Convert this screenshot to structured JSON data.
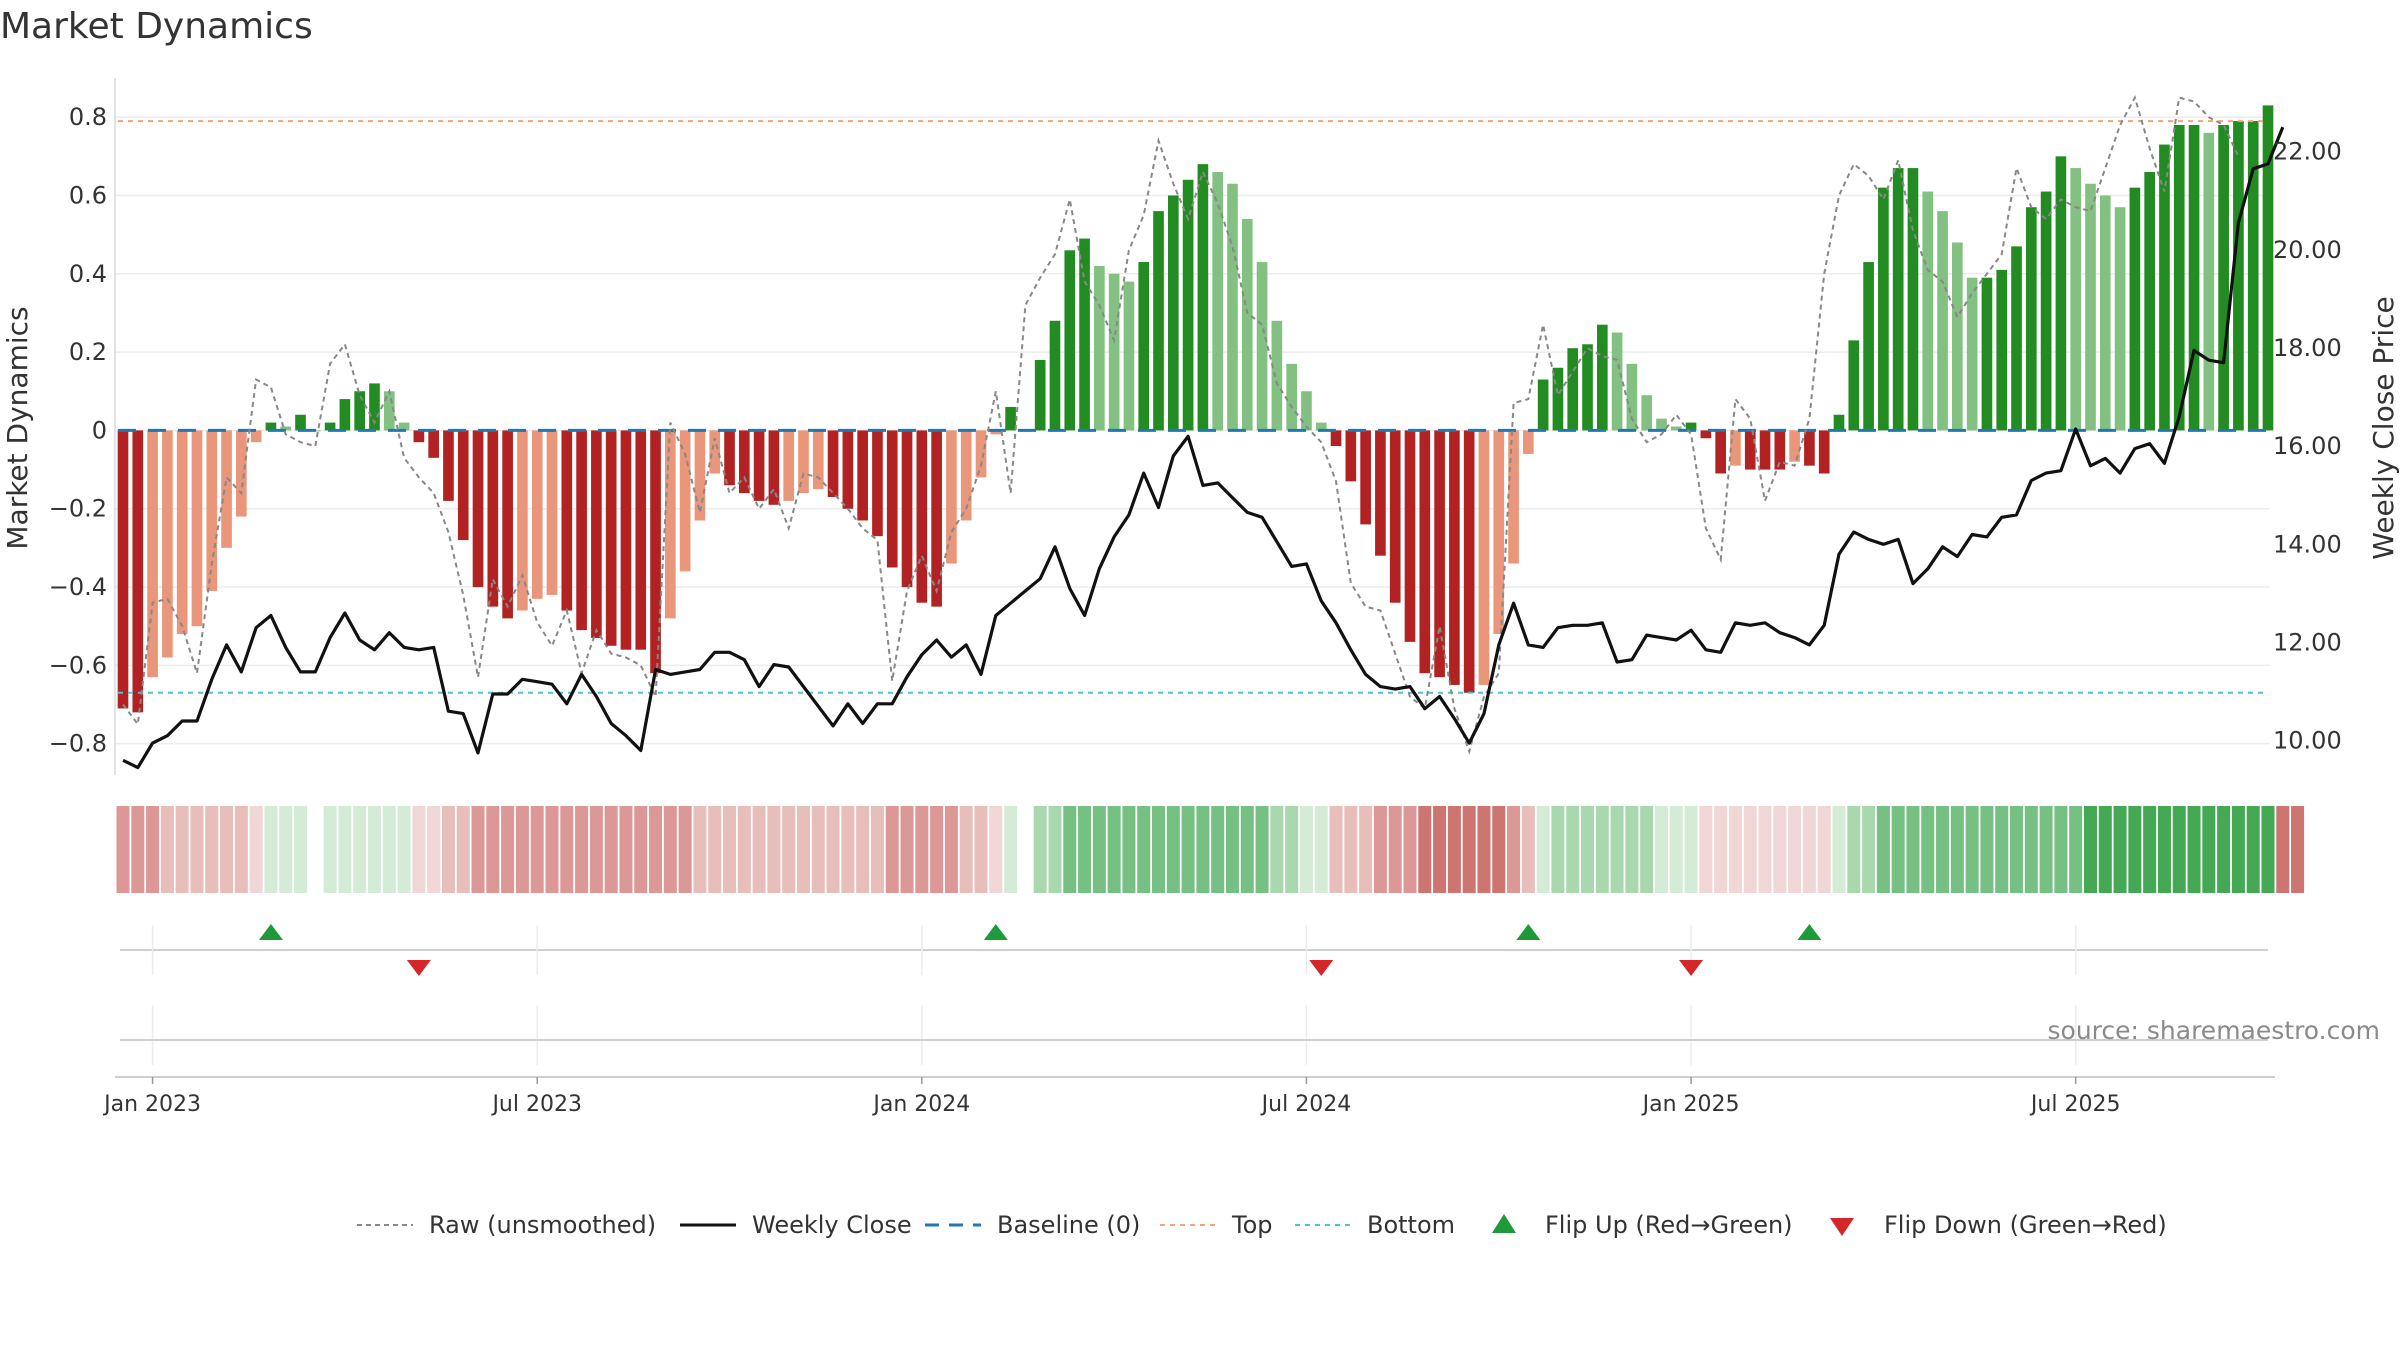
{
  "chart_data": {
    "type": "bar",
    "title": "Market Dynamics",
    "ylabel_left": "Market Dynamics",
    "ylabel_right": "Weekly Close Price",
    "ylim_left": [
      -0.88,
      0.9
    ],
    "ylim_right": [
      9.3,
      23.5
    ],
    "yticks_left": [
      {
        "v": 0.8,
        "label": "0.8"
      },
      {
        "v": 0.6,
        "label": "0.6"
      },
      {
        "v": 0.4,
        "label": "0.4"
      },
      {
        "v": 0.2,
        "label": "0.2"
      },
      {
        "v": 0,
        "label": "0"
      },
      {
        "v": -0.2,
        "label": "−0.2"
      },
      {
        "v": -0.4,
        "label": "−0.4"
      },
      {
        "v": -0.6,
        "label": "−0.6"
      },
      {
        "v": -0.8,
        "label": "−0.8"
      }
    ],
    "yticks_right": [
      {
        "v": 22,
        "label": "22.00"
      },
      {
        "v": 20,
        "label": "20.00"
      },
      {
        "v": 18,
        "label": "18.00"
      },
      {
        "v": 16,
        "label": "16.00"
      },
      {
        "v": 14,
        "label": "14.00"
      },
      {
        "v": 12,
        "label": "12.00"
      },
      {
        "v": 10,
        "label": "10.00"
      }
    ],
    "xtick_labels": [
      {
        "week": 2,
        "label": "Jan 2023"
      },
      {
        "week": 28,
        "label": "Jul 2023"
      },
      {
        "week": 54,
        "label": "Jan 2024"
      },
      {
        "week": 80,
        "label": "Jul 2024"
      },
      {
        "week": 106,
        "label": "Jan 2025"
      },
      {
        "week": 132,
        "label": "Jul 2025"
      }
    ],
    "top_level": 0.79,
    "bottom_level": -0.67,
    "baseline": 0,
    "momentum": [
      -0.71,
      -0.72,
      -0.63,
      -0.58,
      -0.52,
      -0.5,
      -0.41,
      -0.3,
      -0.22,
      -0.03,
      0.02,
      0.01,
      0.04,
      0,
      0.02,
      0.08,
      0.1,
      0.12,
      0.1,
      0.02,
      -0.03,
      -0.07,
      -0.18,
      -0.28,
      -0.4,
      -0.45,
      -0.48,
      -0.46,
      -0.43,
      -0.42,
      -0.46,
      -0.51,
      -0.53,
      -0.55,
      -0.56,
      -0.56,
      -0.62,
      -0.48,
      -0.36,
      -0.23,
      -0.11,
      -0.14,
      -0.16,
      -0.18,
      -0.19,
      -0.18,
      -0.16,
      -0.15,
      -0.17,
      -0.2,
      -0.23,
      -0.27,
      -0.35,
      -0.4,
      -0.44,
      -0.45,
      -0.34,
      -0.23,
      -0.12,
      -0.01,
      0.06,
      0,
      0.18,
      0.28,
      0.46,
      0.49,
      0.42,
      0.4,
      0.38,
      0.43,
      0.56,
      0.6,
      0.64,
      0.68,
      0.66,
      0.63,
      0.54,
      0.43,
      0.28,
      0.17,
      0.1,
      0.02,
      -0.04,
      -0.13,
      -0.24,
      -0.32,
      -0.44,
      -0.54,
      -0.62,
      -0.63,
      -0.65,
      -0.67,
      -0.65,
      -0.52,
      -0.34,
      -0.06,
      0.13,
      0.16,
      0.21,
      0.22,
      0.27,
      0.25,
      0.17,
      0.09,
      0.03,
      0.01,
      0.02,
      -0.02,
      -0.11,
      -0.09,
      -0.1,
      -0.1,
      -0.1,
      -0.08,
      -0.09,
      -0.11,
      0.04,
      0.23,
      0.43,
      0.62,
      0.67,
      0.67,
      0.61,
      0.56,
      0.48,
      0.39,
      0.39,
      0.41,
      0.47,
      0.57,
      0.61,
      0.7,
      0.67,
      0.63,
      0.6,
      0.57,
      0.62,
      0.66,
      0.73,
      0.78,
      0.78,
      0.76,
      0.78,
      0.79,
      0.79,
      0.83
    ],
    "raw": [
      -0.7,
      -0.75,
      -0.44,
      -0.43,
      -0.5,
      -0.62,
      -0.34,
      -0.12,
      -0.16,
      0.13,
      0.11,
      -0.01,
      -0.03,
      -0.04,
      0.17,
      0.22,
      0.09,
      0.02,
      0.1,
      -0.07,
      -0.12,
      -0.16,
      -0.26,
      -0.42,
      -0.63,
      -0.38,
      -0.45,
      -0.37,
      -0.49,
      -0.55,
      -0.46,
      -0.62,
      -0.51,
      -0.57,
      -0.58,
      -0.6,
      -0.68,
      0.02,
      -0.06,
      -0.21,
      -0.02,
      -0.16,
      -0.12,
      -0.2,
      -0.15,
      -0.25,
      -0.11,
      -0.12,
      -0.16,
      -0.2,
      -0.25,
      -0.28,
      -0.64,
      -0.41,
      -0.32,
      -0.41,
      -0.26,
      -0.2,
      -0.09,
      0.1,
      -0.16,
      0.32,
      0.39,
      0.45,
      0.59,
      0.38,
      0.32,
      0.23,
      0.46,
      0.55,
      0.74,
      0.63,
      0.54,
      0.66,
      0.58,
      0.47,
      0.3,
      0.27,
      0.12,
      0.06,
      0.01,
      -0.03,
      -0.13,
      -0.39,
      -0.45,
      -0.46,
      -0.57,
      -0.68,
      -0.71,
      -0.5,
      -0.71,
      -0.82,
      -0.68,
      -0.62,
      0.07,
      0.08,
      0.27,
      0.09,
      0.15,
      0.21,
      0.19,
      0.18,
      0.03,
      -0.03,
      -0.01,
      0.04,
      -0.01,
      -0.25,
      -0.33,
      0.08,
      0.03,
      -0.18,
      -0.08,
      -0.09,
      0.03,
      0.4,
      0.6,
      0.68,
      0.65,
      0.59,
      0.69,
      0.51,
      0.41,
      0.38,
      0.29,
      0.35,
      0.4,
      0.45,
      0.67,
      0.57,
      0.54,
      0.59,
      0.57,
      0.56,
      0.67,
      0.78,
      0.85,
      0.72,
      0.61,
      0.85,
      0.84,
      0.8,
      0.78,
      0.7
    ],
    "price": [
      9.6,
      9.45,
      9.95,
      10.1,
      10.4,
      10.4,
      11.25,
      11.95,
      11.4,
      12.3,
      12.55,
      11.9,
      11.4,
      11.4,
      12.1,
      12.6,
      12.05,
      11.85,
      12.2,
      11.9,
      11.85,
      11.9,
      10.6,
      10.55,
      9.75,
      10.95,
      10.95,
      11.25,
      11.2,
      11.15,
      10.75,
      11.35,
      10.9,
      10.35,
      10.1,
      9.8,
      11.45,
      11.35,
      11.4,
      11.45,
      11.8,
      11.8,
      11.65,
      11.1,
      11.55,
      11.5,
      11.1,
      10.7,
      10.3,
      10.75,
      10.35,
      10.75,
      10.75,
      11.3,
      11.75,
      12.05,
      11.7,
      11.95,
      11.35,
      12.55,
      12.8,
      13.05,
      13.3,
      13.95,
      13.1,
      12.55,
      13.5,
      14.15,
      14.6,
      15.45,
      14.75,
      15.8,
      16.2,
      15.2,
      15.25,
      14.95,
      14.65,
      14.55,
      14.05,
      13.55,
      13.6,
      12.85,
      12.4,
      11.85,
      11.35,
      11.1,
      11.05,
      11.1,
      10.65,
      10.9,
      10.45,
      9.95,
      10.55,
      11.95,
      12.8,
      11.95,
      11.9,
      12.3,
      12.35,
      12.35,
      12.4,
      11.6,
      11.65,
      12.15,
      12.1,
      12.05,
      12.25,
      11.85,
      11.8,
      12.4,
      12.35,
      12.4,
      12.2,
      12.1,
      11.95,
      12.35,
      13.8,
      14.25,
      14.1,
      14.0,
      14.1,
      13.2,
      13.5,
      13.95,
      13.75,
      14.2,
      14.15,
      14.55,
      14.6,
      15.3,
      15.45,
      15.5,
      16.35,
      15.6,
      15.75,
      15.45,
      15.95,
      16.05,
      15.65,
      16.6,
      17.95,
      17.75,
      17.7,
      20.55,
      21.65,
      21.75,
      22.5
    ],
    "regime_strength": [
      2,
      2,
      2,
      1,
      1,
      1,
      1,
      1,
      1,
      0,
      0,
      0,
      0,
      0,
      0,
      0,
      0,
      0,
      0,
      0,
      0,
      0,
      1,
      1,
      2,
      2,
      2,
      2,
      2,
      2,
      2,
      2,
      2,
      2,
      2,
      2,
      2,
      2,
      2,
      1,
      1,
      1,
      1,
      1,
      1,
      1,
      1,
      1,
      1,
      1,
      1,
      1,
      2,
      2,
      2,
      2,
      2,
      1,
      1,
      0,
      0,
      0,
      1,
      1,
      2,
      2,
      2,
      2,
      2,
      2,
      2,
      2,
      2,
      2,
      2,
      2,
      2,
      2,
      1,
      1,
      0,
      0,
      1,
      1,
      1,
      2,
      2,
      2,
      3,
      3,
      3,
      3,
      3,
      3,
      2,
      1,
      0,
      1,
      1,
      1,
      1,
      1,
      1,
      1,
      0,
      0,
      0,
      0,
      0,
      0,
      0,
      0,
      0,
      0,
      0,
      0,
      0,
      1,
      1,
      2,
      2,
      2,
      2,
      2,
      2,
      2,
      2,
      2,
      2,
      2,
      2,
      2,
      2,
      3,
      3,
      3,
      3,
      3,
      3,
      3,
      3,
      3,
      3,
      3,
      3,
      3,
      3,
      3
    ],
    "flips_up": [
      10,
      59,
      95,
      114
    ],
    "flips_down": [
      20,
      81,
      106
    ],
    "legend": [
      {
        "key": "raw",
        "label": "Raw (unsmoothed)"
      },
      {
        "key": "close",
        "label": "Weekly Close"
      },
      {
        "key": "baseline",
        "label": "Baseline (0)"
      },
      {
        "key": "top",
        "label": "Top"
      },
      {
        "key": "bottom",
        "label": "Bottom"
      },
      {
        "key": "flip_up",
        "label": "Flip Up (Red→Green)"
      },
      {
        "key": "flip_down",
        "label": "Flip Down (Green→Red)"
      }
    ],
    "source": "source: sharemaestro.com"
  },
  "colors": {
    "green_strong": "#228b22",
    "green_light": "#82c182",
    "red_strong": "#b22222",
    "red_light": "#e9967a",
    "price_line": "#111111",
    "raw_line": "#888888",
    "baseline": "#1f77b4",
    "top": "#f4a27a",
    "bottom": "#4fc3d1",
    "flip_up": "#1f9a3a",
    "flip_down": "#d62728",
    "grid": "#ececec",
    "text": "#333333"
  }
}
